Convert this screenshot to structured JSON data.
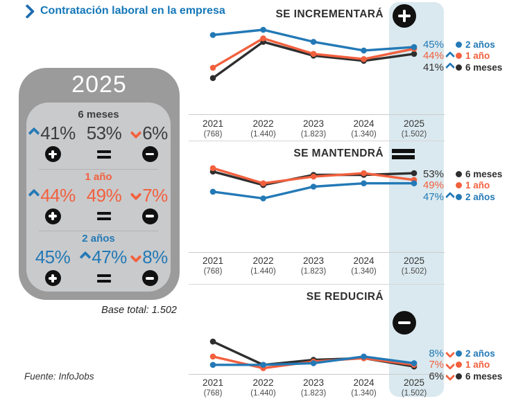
{
  "header": {
    "title": "Contratación laboral en la empresa"
  },
  "summary_panel": {
    "year": "2025",
    "row_icons": [
      "plus",
      "equals",
      "minus"
    ],
    "sections": [
      {
        "label": "6 meses",
        "cells": [
          {
            "value": "41%",
            "chevron": "up"
          },
          {
            "value": "53%",
            "chevron": "none"
          },
          {
            "value": "6%",
            "chevron": "down"
          }
        ]
      },
      {
        "label": "1 año",
        "cells": [
          {
            "value": "44%",
            "chevron": "up"
          },
          {
            "value": "49%",
            "chevron": "none"
          },
          {
            "value": "7%",
            "chevron": "down"
          }
        ]
      },
      {
        "label": "2 años",
        "cells": [
          {
            "value": "45%",
            "chevron": "none"
          },
          {
            "value": "47%",
            "chevron": "up"
          },
          {
            "value": "8%",
            "chevron": "down"
          }
        ]
      }
    ],
    "base_note": "Base total: 1.502"
  },
  "source": "Fuente: InfoJobs",
  "colors": {
    "accent_blue": "#2379b6",
    "accent_orange": "#f2603e",
    "line_dark": "#2e2e2e",
    "highlight_band": "#dae9ef",
    "panel_outer": "#9b9b9b",
    "panel_inner": "#c9cacc",
    "title_blue": "#1477b8"
  },
  "chart_data": [
    {
      "type": "line",
      "title": "SE INCREMENTARÁ",
      "icon": "plus-circle",
      "categories": [
        "2021",
        "2022",
        "2023",
        "2024",
        "2025"
      ],
      "category_bases": [
        "(768)",
        "(1.440)",
        "(1.823)",
        "(1.340)",
        "(1.502)"
      ],
      "highlight_category": "2025",
      "grid": false,
      "ylim": [
        6,
        57
      ],
      "series": [
        {
          "name": "6 meses",
          "color": "#2e2e2e",
          "values": [
            27,
            48,
            40,
            37,
            41
          ]
        },
        {
          "name": "1 año",
          "color": "#f2603e",
          "values": [
            33,
            50,
            41,
            38,
            44
          ]
        },
        {
          "name": "2 años",
          "color": "#2379b6",
          "values": [
            52,
            55,
            48,
            43,
            45
          ]
        }
      ],
      "end_labels": [
        {
          "text": "45%",
          "color": "#2379b6",
          "chevron": null
        },
        {
          "text": "44%",
          "color": "#f2603e",
          "chevron": "up"
        },
        {
          "text": "41%",
          "color": "#303030",
          "chevron": "up"
        }
      ],
      "legend": [
        {
          "name": "2 años",
          "color": "#2379b6"
        },
        {
          "name": "1 año",
          "color": "#f2603e"
        },
        {
          "name": "6 meses",
          "color": "#2e2e2e"
        }
      ]
    },
    {
      "type": "line",
      "title": "SE MANTENDRÁ",
      "icon": "equals",
      "categories": [
        "2021",
        "2022",
        "2023",
        "2024",
        "2025"
      ],
      "category_bases": [
        "(768)",
        "(1.440)",
        "(1.823)",
        "(1.340)",
        "(1.502)"
      ],
      "highlight_category": "2025",
      "grid": false,
      "ylim": [
        6,
        58
      ],
      "series": [
        {
          "name": "6 meses",
          "color": "#2e2e2e",
          "values": [
            54,
            46,
            52,
            52,
            53
          ]
        },
        {
          "name": "1 año",
          "color": "#f2603e",
          "values": [
            56,
            47,
            51,
            53,
            49
          ]
        },
        {
          "name": "2 años",
          "color": "#2379b6",
          "values": [
            42,
            38,
            45,
            47,
            47
          ]
        }
      ],
      "end_labels": [
        {
          "text": "53%",
          "color": "#303030",
          "chevron": null
        },
        {
          "text": "49%",
          "color": "#f2603e",
          "chevron": null
        },
        {
          "text": "47%",
          "color": "#2379b6",
          "chevron": "up"
        }
      ],
      "legend": [
        {
          "name": "6 meses",
          "color": "#2e2e2e"
        },
        {
          "name": "1 año",
          "color": "#f2603e"
        },
        {
          "name": "2 años",
          "color": "#2379b6"
        }
      ]
    },
    {
      "type": "line",
      "title": "SE REDUCIRÁ",
      "icon": "minus-circle",
      "categories": [
        "2021",
        "2022",
        "2023",
        "2024",
        "2025"
      ],
      "category_bases": [
        "(768)",
        "(1.440)",
        "(1.823)",
        "(1.340)",
        "(1.502)"
      ],
      "highlight_category": "2025",
      "grid": false,
      "ylim": [
        1.5,
        39
      ],
      "series": [
        {
          "name": "6 meses",
          "color": "#2e2e2e",
          "values": [
            21,
            7,
            10,
            11,
            6
          ]
        },
        {
          "name": "1 año",
          "color": "#f2603e",
          "values": [
            12,
            5,
            9,
            11,
            7
          ]
        },
        {
          "name": "2 años",
          "color": "#2379b6",
          "values": [
            7,
            7,
            8,
            12,
            8
          ]
        }
      ],
      "end_labels": [
        {
          "text": "8%",
          "color": "#2379b6",
          "chevron": "down"
        },
        {
          "text": "7%",
          "color": "#f2603e",
          "chevron": "down"
        },
        {
          "text": "6%",
          "color": "#303030",
          "chevron": "down"
        }
      ],
      "legend": [
        {
          "name": "2 años",
          "color": "#2379b6"
        },
        {
          "name": "1 año",
          "color": "#f2603e"
        },
        {
          "name": "6 meses",
          "color": "#2e2e2e"
        }
      ]
    }
  ]
}
